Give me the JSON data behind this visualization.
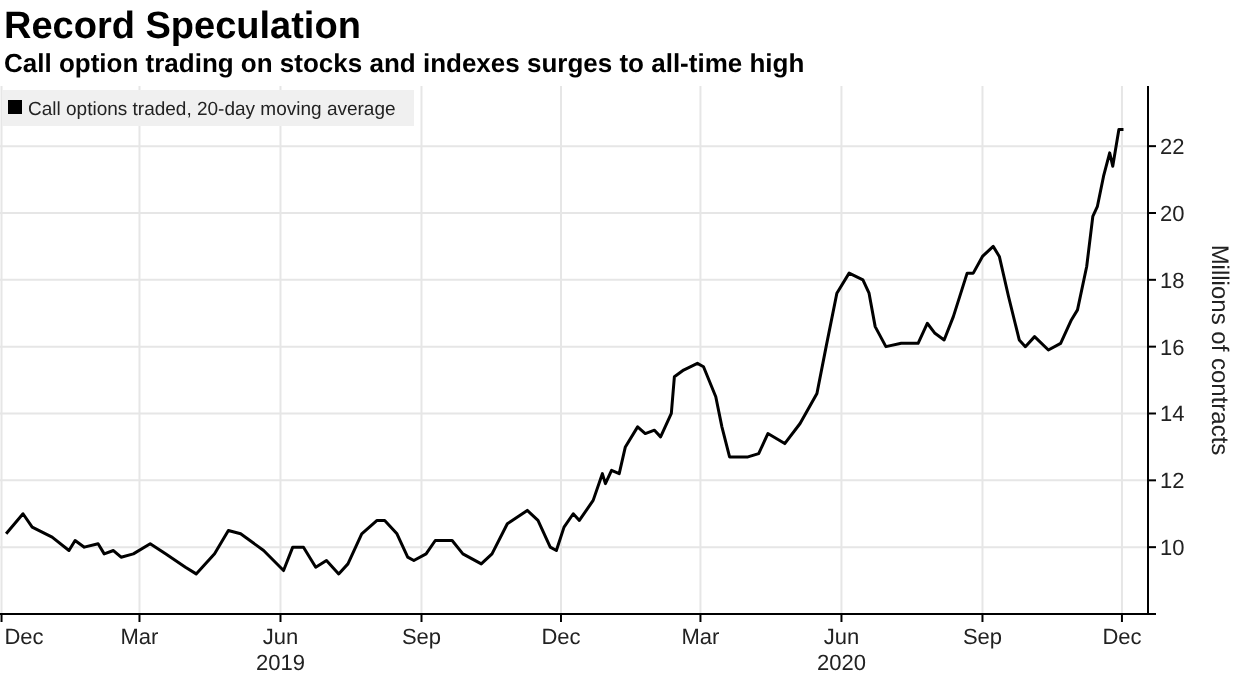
{
  "chart_data": {
    "type": "line",
    "title": "Record Speculation",
    "subtitle": "Call option trading on stocks and indexes surges to all-time high",
    "ylabel": "Millions of contracts",
    "x": [
      "2018-12-18",
      "2018-12-29",
      "2019-01-04",
      "2019-01-17",
      "2019-01-28",
      "2019-02-01",
      "2019-02-07",
      "2019-02-16",
      "2019-02-20",
      "2019-02-26",
      "2019-03-03",
      "2019-03-11",
      "2019-03-22",
      "2019-04-01",
      "2019-04-14",
      "2019-04-21",
      "2019-05-03",
      "2019-05-12",
      "2019-05-20",
      "2019-06-04",
      "2019-06-17",
      "2019-06-23",
      "2019-06-30",
      "2019-07-08",
      "2019-07-15",
      "2019-07-23",
      "2019-07-29",
      "2019-08-07",
      "2019-08-17",
      "2019-08-22",
      "2019-08-30",
      "2019-09-06",
      "2019-09-10",
      "2019-09-18",
      "2019-09-24",
      "2019-10-05",
      "2019-10-12",
      "2019-10-24",
      "2019-10-31",
      "2019-11-10",
      "2019-11-23",
      "2019-11-30",
      "2019-12-08",
      "2019-12-12",
      "2019-12-17",
      "2019-12-23",
      "2019-12-27",
      "2020-01-05",
      "2020-01-11",
      "2020-01-13",
      "2020-01-17",
      "2020-01-22",
      "2020-01-26",
      "2020-02-03",
      "2020-02-08",
      "2020-02-14",
      "2020-02-18",
      "2020-02-25",
      "2020-02-27",
      "2020-03-04",
      "2020-03-13",
      "2020-03-17",
      "2020-03-25",
      "2020-03-29",
      "2020-04-03",
      "2020-04-15",
      "2020-04-22",
      "2020-04-28",
      "2020-05-09",
      "2020-05-19",
      "2020-05-30",
      "2020-06-05",
      "2020-06-12",
      "2020-06-20",
      "2020-06-29",
      "2020-07-03",
      "2020-07-07",
      "2020-07-14",
      "2020-07-24",
      "2020-08-04",
      "2020-08-10",
      "2020-08-15",
      "2020-08-21",
      "2020-08-27",
      "2020-09-05",
      "2020-09-09",
      "2020-09-15",
      "2020-09-22",
      "2020-09-26",
      "2020-10-02",
      "2020-10-09",
      "2020-10-13",
      "2020-10-19",
      "2020-10-28",
      "2020-11-05",
      "2020-11-12",
      "2020-11-16",
      "2020-11-22",
      "2020-11-26",
      "2020-11-29",
      "2020-12-03",
      "2020-12-07",
      "2020-12-09",
      "2020-12-13",
      "2020-12-16"
    ],
    "series": [
      {
        "name": "Call options traded, 20-day moving average",
        "color": "#000000",
        "values": [
          10.4,
          11.0,
          10.6,
          10.3,
          9.9,
          10.2,
          10.0,
          10.1,
          9.8,
          9.9,
          9.7,
          9.8,
          10.1,
          9.8,
          9.4,
          9.2,
          9.8,
          10.5,
          10.4,
          9.9,
          9.3,
          10.0,
          10.0,
          9.4,
          9.6,
          9.2,
          9.5,
          10.4,
          10.8,
          10.8,
          10.4,
          9.7,
          9.6,
          9.8,
          10.2,
          10.2,
          9.8,
          9.5,
          9.8,
          10.7,
          11.1,
          10.8,
          10.0,
          9.9,
          10.6,
          11.0,
          10.8,
          11.4,
          12.2,
          11.9,
          12.3,
          12.2,
          13.0,
          13.6,
          13.4,
          13.5,
          13.3,
          14.0,
          15.1,
          15.3,
          15.5,
          15.4,
          14.5,
          13.6,
          12.7,
          12.7,
          12.8,
          13.4,
          13.1,
          13.7,
          14.6,
          16.0,
          17.6,
          18.2,
          18.0,
          17.6,
          16.6,
          16.0,
          16.1,
          16.1,
          16.7,
          16.4,
          16.2,
          16.9,
          18.2,
          18.2,
          18.7,
          19.0,
          18.7,
          17.5,
          16.2,
          16.0,
          16.3,
          15.9,
          16.1,
          16.8,
          17.1,
          18.4,
          19.9,
          20.2,
          21.1,
          21.8,
          21.4,
          22.5,
          22.5
        ]
      }
    ],
    "xlim": [
      "2018-12-14",
      "2021-01-01"
    ],
    "xticks": [
      {
        "value": "2018-12-15",
        "label": "Dec"
      },
      {
        "value": "2019-03-15",
        "label": "Mar"
      },
      {
        "value": "2019-06-15",
        "label": "Jun\n2019"
      },
      {
        "value": "2019-09-15",
        "label": "Sep"
      },
      {
        "value": "2019-12-15",
        "label": "Dec"
      },
      {
        "value": "2020-03-15",
        "label": "Mar"
      },
      {
        "value": "2020-06-15",
        "label": "Jun\n2020"
      },
      {
        "value": "2020-09-15",
        "label": "Sep"
      },
      {
        "value": "2020-12-15",
        "label": "Dec"
      }
    ],
    "ylim": [
      8,
      23.8
    ],
    "yticks": [
      {
        "value": 8,
        "label": null
      },
      10,
      12,
      14,
      16,
      18,
      20,
      22
    ],
    "grid": true,
    "legend": "top left",
    "marker": "none",
    "line_style": "solid"
  }
}
